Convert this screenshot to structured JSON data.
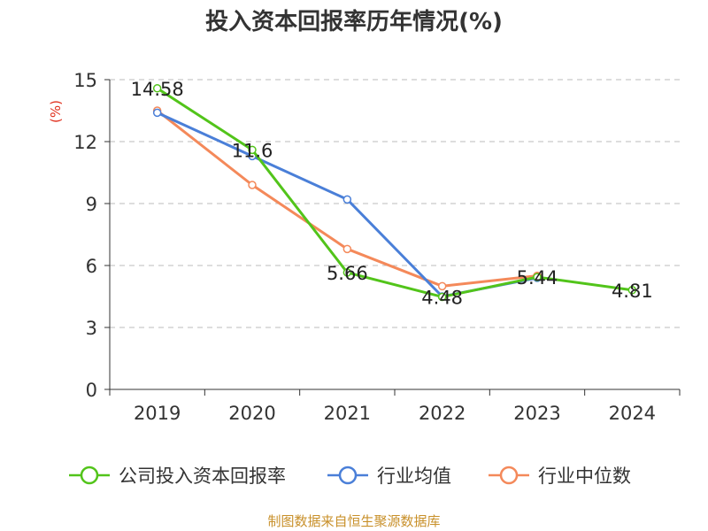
{
  "chart_data": {
    "type": "line",
    "title": "投入资本回报率历年情况(%)",
    "ylabel": "(%)",
    "xlabel": "",
    "categories": [
      "2019",
      "2020",
      "2021",
      "2022",
      "2023",
      "2024"
    ],
    "ylim": [
      0,
      15
    ],
    "yticks": [
      0,
      3,
      6,
      9,
      12,
      15
    ],
    "grid": true,
    "legend_position": "bottom",
    "series": [
      {
        "name": "公司投入资本回报率",
        "color": "#52c41a",
        "values": [
          14.58,
          11.6,
          5.66,
          4.48,
          5.44,
          4.81
        ],
        "labels": [
          "14.58",
          "11.6",
          "5.66",
          "4.48",
          "5.44",
          "4.81"
        ]
      },
      {
        "name": "行业均值",
        "color": "#4a7fd8",
        "values": [
          13.4,
          11.3,
          9.2,
          4.5,
          5.4,
          null
        ]
      },
      {
        "name": "行业中位数",
        "color": "#f4895a",
        "values": [
          13.5,
          9.9,
          6.8,
          5.0,
          5.5,
          null
        ]
      }
    ]
  },
  "source_note": "制图数据来自恒生聚源数据库",
  "source_note_color": "#c8902a",
  "ylabel_color": "#e0301e"
}
